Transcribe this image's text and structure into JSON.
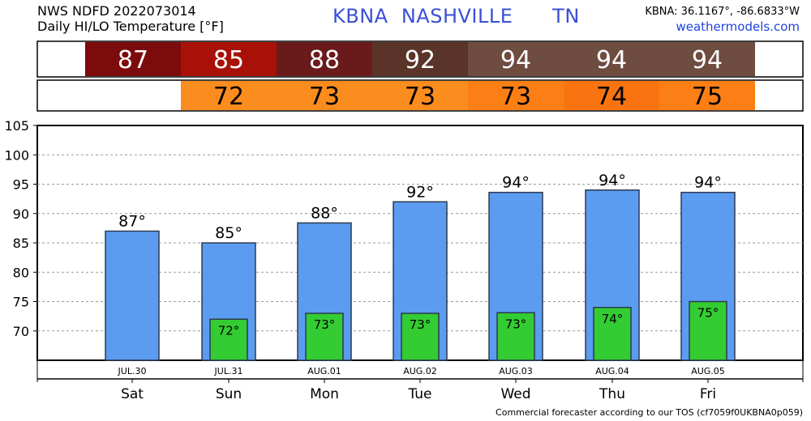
{
  "header": {
    "line1": "NWS NDFD 2022073014",
    "line2": "Daily HI/LO Temperature [°F]",
    "station_title": "KBNA  NASHVILLE      TN",
    "coords": "KBNA: 36.1167°, -86.6833°W",
    "site": "weathermodels.com"
  },
  "strip": {
    "hi_values": [
      "87",
      "85",
      "88",
      "92",
      "94",
      "94",
      "94"
    ],
    "hi_colors": [
      "#7c0b0b",
      "#a81108",
      "#6a1a1a",
      "#5a3428",
      "#6e4c40",
      "#6e4c40",
      "#6e4c40"
    ],
    "lo_values": [
      "",
      "72",
      "73",
      "73",
      "73",
      "74",
      "75"
    ],
    "lo_colors": [
      "#ffffff",
      "#fb8c1e",
      "#fb8c1e",
      "#fb8c1e",
      "#fb7f14",
      "#f97410",
      "#fb7f14"
    ]
  },
  "chart_data": {
    "type": "bar",
    "dates": [
      "JUL.30",
      "JUL.31",
      "AUG.01",
      "AUG.02",
      "AUG.03",
      "AUG.04",
      "AUG.05"
    ],
    "categories": [
      "Sat",
      "Sun",
      "Mon",
      "Tue",
      "Wed",
      "Thu",
      "Fri"
    ],
    "series": [
      {
        "values": [
          87,
          85,
          88.4,
          92,
          93.6,
          94,
          93.6
        ],
        "labels": [
          "87°",
          "85°",
          "88°",
          "92°",
          "94°",
          "94°",
          "94°"
        ],
        "color": "#5b9cf0"
      },
      {
        "values": [
          null,
          72,
          73,
          73,
          73.1,
          74,
          75
        ],
        "labels": [
          "",
          "72°",
          "73°",
          "73°",
          "73°",
          "74°",
          "75°"
        ],
        "color": "#33cc33"
      }
    ],
    "ylim": [
      65,
      105
    ],
    "yticks": [
      70,
      75,
      80,
      85,
      90,
      95,
      100,
      105
    ],
    "grid": true
  },
  "footer": {
    "text": "Commercial forecaster according to our TOS (cf7059f0UKBNA0p059)"
  }
}
